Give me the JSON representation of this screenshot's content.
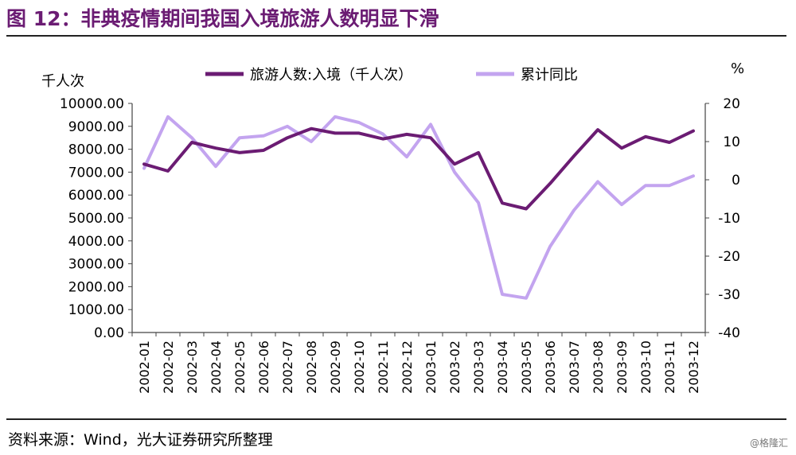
{
  "header": {
    "title": "图 12：非典疫情期间我国入境旅游人数明显下滑"
  },
  "footer": {
    "source": "资料来源：Wind，光大证券研究所整理",
    "watermark": "@格隆汇"
  },
  "colors": {
    "title": "#6b1c73",
    "series_primary": "#6b1c73",
    "series_secondary": "#c3a4ef"
  },
  "chart_data": {
    "type": "line",
    "title": "",
    "left_axis_unit": "千人次",
    "right_axis_unit": "%",
    "ylim_left": [
      0,
      10000
    ],
    "ylim_right": [
      -40,
      20
    ],
    "left_ticks": [
      "10000.00",
      "9000.00",
      "8000.00",
      "7000.00",
      "6000.00",
      "5000.00",
      "4000.00",
      "3000.00",
      "2000.00",
      "1000.00",
      "0.00"
    ],
    "right_ticks": [
      "20",
      "10",
      "0",
      "-10",
      "-20",
      "-30",
      "-40"
    ],
    "categories": [
      "2002-01",
      "2002-02",
      "2002-03",
      "2002-04",
      "2002-05",
      "2002-06",
      "2002-07",
      "2002-08",
      "2002-09",
      "2002-10",
      "2002-11",
      "2002-12",
      "2003-01",
      "2003-02",
      "2003-03",
      "2003-04",
      "2003-05",
      "2003-06",
      "2003-07",
      "2003-08",
      "2003-09",
      "2003-10",
      "2003-11",
      "2003-12"
    ],
    "legend_position": "top",
    "grid": false,
    "series": [
      {
        "name": "旅游人数:入境（千人次）",
        "axis": "left",
        "values": [
          7350,
          7050,
          8300,
          8050,
          7850,
          7950,
          8500,
          8900,
          8700,
          8700,
          8450,
          8650,
          8500,
          7350,
          7850,
          5650,
          5400,
          6500,
          7700,
          8850,
          8050,
          8550,
          8300,
          8800
        ]
      },
      {
        "name": "累计同比",
        "axis": "right",
        "values": [
          3,
          16.5,
          11,
          3.5,
          11,
          11.5,
          14,
          10,
          16.5,
          15,
          12,
          6,
          14.5,
          2,
          -6,
          -30,
          -31,
          -17.5,
          -8,
          -0.5,
          -6.5,
          -1.5,
          -1.5,
          1
        ]
      }
    ]
  }
}
